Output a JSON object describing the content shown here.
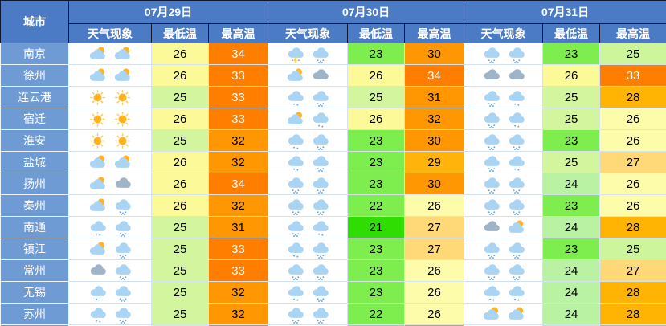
{
  "table": {
    "corner_header": "城市",
    "dates": [
      "07月29日",
      "07月30日",
      "07月31日"
    ],
    "sub_headers": [
      "天气现象",
      "最低温",
      "最高温"
    ],
    "rows": [
      {
        "city": "南京",
        "days": [
          {
            "icons": [
              "cloud_sun",
              "cloud_sun"
            ],
            "min": 26,
            "max": 34
          },
          {
            "icons": [
              "thunder_rain",
              "rain"
            ],
            "min": 23,
            "max": 30
          },
          {
            "icons": [
              "rain",
              "rain"
            ],
            "min": 23,
            "max": 25
          }
        ]
      },
      {
        "city": "徐州",
        "days": [
          {
            "icons": [
              "cloud_sun",
              "cloud_sun"
            ],
            "min": 26,
            "max": 33
          },
          {
            "icons": [
              "cloud_sun",
              "gray_cloud"
            ],
            "min": 26,
            "max": 34
          },
          {
            "icons": [
              "gray_cloud",
              "gray_cloud"
            ],
            "min": 26,
            "max": 33
          }
        ]
      },
      {
        "city": "连云港",
        "days": [
          {
            "icons": [
              "sun",
              "sun"
            ],
            "min": 25,
            "max": 33
          },
          {
            "icons": [
              "rain_light",
              "rain"
            ],
            "min": 25,
            "max": 31
          },
          {
            "icons": [
              "rain",
              "rain_light"
            ],
            "min": 25,
            "max": 28
          }
        ]
      },
      {
        "city": "宿迁",
        "days": [
          {
            "icons": [
              "sun",
              "sun"
            ],
            "min": 26,
            "max": 33
          },
          {
            "icons": [
              "cloud_sun",
              "rain_light"
            ],
            "min": 26,
            "max": 32
          },
          {
            "icons": [
              "rain",
              "rain_light"
            ],
            "min": 25,
            "max": 26
          }
        ]
      },
      {
        "city": "淮安",
        "days": [
          {
            "icons": [
              "sun",
              "sun"
            ],
            "min": 25,
            "max": 32
          },
          {
            "icons": [
              "rain_light",
              "rain"
            ],
            "min": 23,
            "max": 30
          },
          {
            "icons": [
              "rain",
              "rain"
            ],
            "min": 23,
            "max": 26
          }
        ]
      },
      {
        "city": "盐城",
        "days": [
          {
            "icons": [
              "cloud_sun",
              "cloud_sun"
            ],
            "min": 26,
            "max": 32
          },
          {
            "icons": [
              "rain_light",
              "rain"
            ],
            "min": 23,
            "max": 29
          },
          {
            "icons": [
              "rain",
              "rain_light"
            ],
            "min": 25,
            "max": 27
          }
        ]
      },
      {
        "city": "扬州",
        "days": [
          {
            "icons": [
              "cloud_sun",
              "gray_cloud"
            ],
            "min": 26,
            "max": 34
          },
          {
            "icons": [
              "rain",
              "rain"
            ],
            "min": 23,
            "max": 30
          },
          {
            "icons": [
              "rain",
              "rain"
            ],
            "min": 24,
            "max": 26
          }
        ]
      },
      {
        "city": "泰州",
        "days": [
          {
            "icons": [
              "cloud_sun",
              "rain"
            ],
            "min": 26,
            "max": 32
          },
          {
            "icons": [
              "rain",
              "rain"
            ],
            "min": 22,
            "max": 26
          },
          {
            "icons": [
              "rain",
              "rain"
            ],
            "min": 23,
            "max": 26
          }
        ]
      },
      {
        "city": "南通",
        "days": [
          {
            "icons": [
              "rain_light",
              "rain"
            ],
            "min": 25,
            "max": 31
          },
          {
            "icons": [
              "rain",
              "rain_light"
            ],
            "min": 21,
            "max": 27
          },
          {
            "icons": [
              "gray_cloud",
              "cloud_sun"
            ],
            "min": 24,
            "max": 28
          }
        ]
      },
      {
        "city": "镇江",
        "days": [
          {
            "icons": [
              "cloud_sun",
              "rain"
            ],
            "min": 25,
            "max": 33
          },
          {
            "icons": [
              "rain_light",
              "rain"
            ],
            "min": 23,
            "max": 27
          },
          {
            "icons": [
              "rain",
              "rain"
            ],
            "min": 23,
            "max": 25
          }
        ]
      },
      {
        "city": "常州",
        "days": [
          {
            "icons": [
              "gray_cloud",
              "rain"
            ],
            "min": 25,
            "max": 33
          },
          {
            "icons": [
              "rain",
              "rain"
            ],
            "min": 23,
            "max": 26
          },
          {
            "icons": [
              "rain",
              "rain"
            ],
            "min": 24,
            "max": 27
          }
        ]
      },
      {
        "city": "无锡",
        "days": [
          {
            "icons": [
              "rain_light",
              "rain"
            ],
            "min": 25,
            "max": 32
          },
          {
            "icons": [
              "rain_light",
              "rain"
            ],
            "min": 23,
            "max": 26
          },
          {
            "icons": [
              "rain_light",
              "rain_light"
            ],
            "min": 24,
            "max": 28
          }
        ]
      },
      {
        "city": "苏州",
        "days": [
          {
            "icons": [
              "rain_light",
              "rain"
            ],
            "min": 25,
            "max": 32
          },
          {
            "icons": [
              "rain",
              "rain"
            ],
            "min": 22,
            "max": 26
          },
          {
            "icons": [
              "cloud_sun",
              "cloud_sun"
            ],
            "min": 24,
            "max": 28
          }
        ]
      }
    ],
    "partial_row_colors": [
      "#d2f59e",
      "#ff8a00",
      "#7dee4e",
      "#ff9702",
      "#b8f2a2",
      "#ffb303"
    ]
  },
  "temp_colors": {
    "min": {
      "21": "#2fdd02",
      "22": "#7dee4e",
      "23": "#7dee4e",
      "24": "#b8f2a2",
      "25": "#d2f59e",
      "26": "#fbf998"
    },
    "max": {
      "25": "#cdf59b",
      "26": "#fdfcab",
      "27": "#ffd877",
      "28": "#ffb303",
      "29": "#ffb30b",
      "30": "#ff9702",
      "31": "#ff9702",
      "32": "#ff9702",
      "33": "#ff7e00",
      "34": "#ff7e00"
    }
  },
  "white_text_min": 33,
  "icon_names": {
    "sun": "sun-icon",
    "cloud_sun": "sun-behind-cloud-icon",
    "gray_cloud": "overcast-cloud-icon",
    "rain_light": "light-rain-icon",
    "rain": "rain-icon",
    "thunder_rain": "thunder-rain-icon"
  },
  "colors": {
    "header_bg": "#4a7bc4",
    "city_cell_bg": "#6f9bd4",
    "header_border": "#0d1733",
    "grid_line": "#d4e2f2",
    "orange_hot": "#ff7e00",
    "orange_warm": "#ff9702",
    "amber": "#ffb303",
    "green_cool": "#7dee4e"
  }
}
